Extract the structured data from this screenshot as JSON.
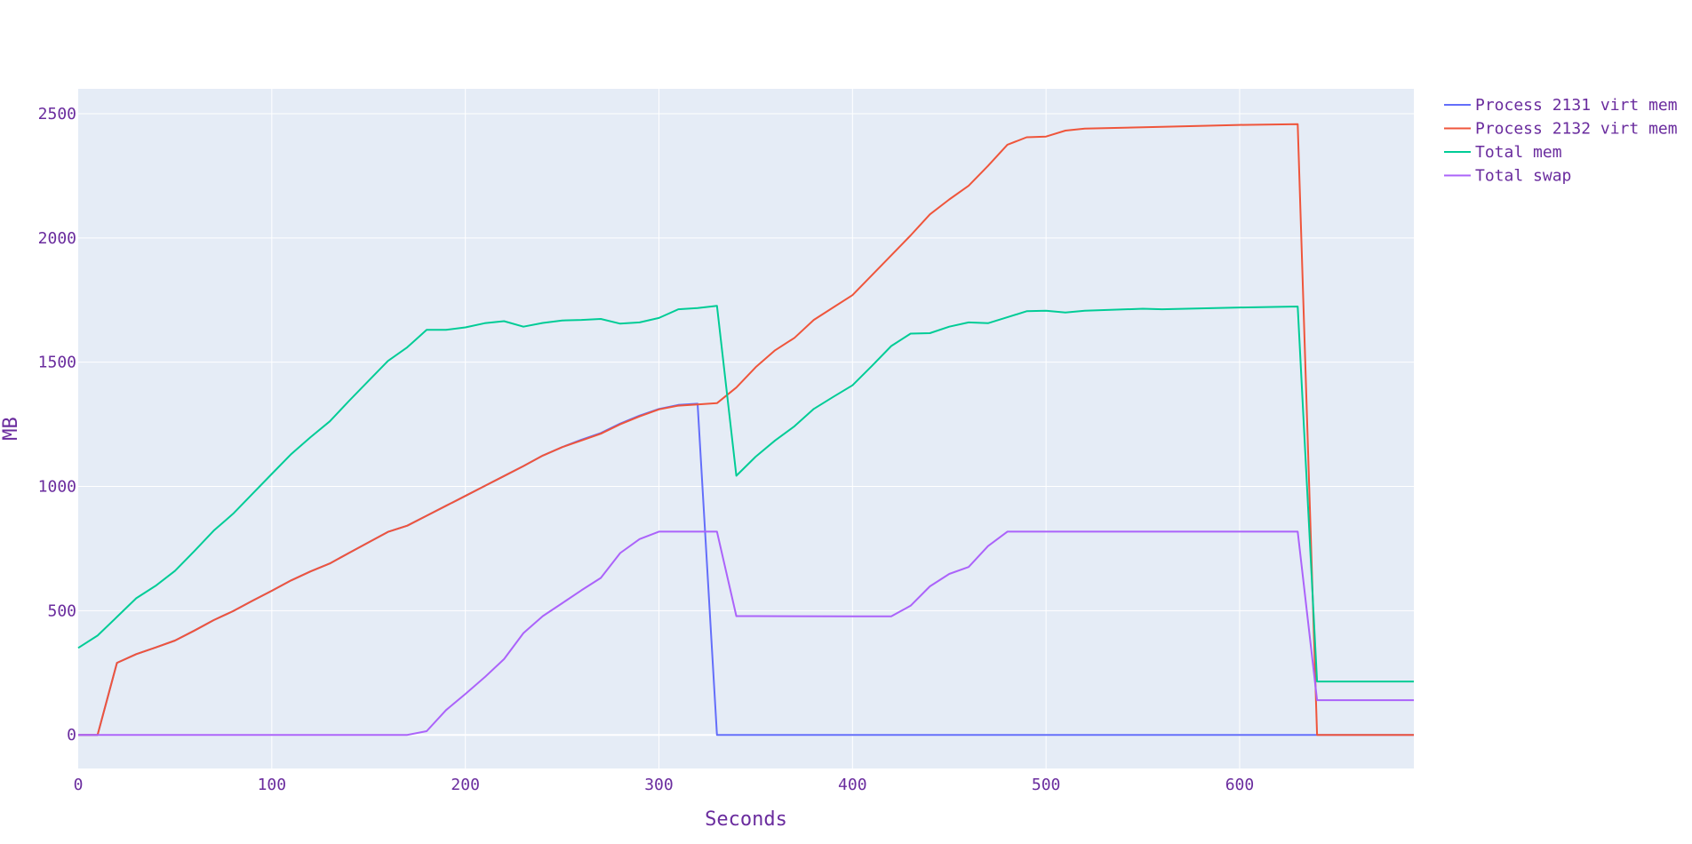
{
  "colors": {
    "plot_bg": "#E5ECF6",
    "grid": "#FFFFFF",
    "text": "#6A2C9E"
  },
  "chart_data": {
    "type": "line",
    "xlabel": "Seconds",
    "ylabel": "MB",
    "xlim": [
      0,
      690
    ],
    "ylim": [
      -135,
      2600
    ],
    "x_ticks": [
      0,
      100,
      200,
      300,
      400,
      500,
      600
    ],
    "y_ticks": [
      0,
      500,
      1000,
      1500,
      2000,
      2500
    ],
    "grid": true,
    "legend_position": "top-right",
    "series": [
      {
        "name": "Process 2131 virt mem",
        "color": "#636EFA",
        "points": [
          [
            0,
            0
          ],
          [
            10,
            0
          ],
          [
            20,
            290
          ],
          [
            30,
            325
          ],
          [
            40,
            352
          ],
          [
            50,
            380
          ],
          [
            60,
            420
          ],
          [
            70,
            462
          ],
          [
            80,
            498
          ],
          [
            90,
            540
          ],
          [
            100,
            580
          ],
          [
            110,
            622
          ],
          [
            120,
            658
          ],
          [
            130,
            690
          ],
          [
            140,
            733
          ],
          [
            150,
            775
          ],
          [
            160,
            817
          ],
          [
            170,
            842
          ],
          [
            180,
            882
          ],
          [
            190,
            922
          ],
          [
            200,
            962
          ],
          [
            210,
            1002
          ],
          [
            220,
            1042
          ],
          [
            230,
            1082
          ],
          [
            240,
            1124
          ],
          [
            250,
            1158
          ],
          [
            260,
            1188
          ],
          [
            270,
            1215
          ],
          [
            280,
            1253
          ],
          [
            290,
            1285
          ],
          [
            300,
            1312
          ],
          [
            310,
            1328
          ],
          [
            320,
            1333
          ],
          [
            330,
            0
          ],
          [
            340,
            0
          ],
          [
            400,
            0
          ],
          [
            500,
            0
          ],
          [
            600,
            0
          ],
          [
            640,
            0
          ],
          [
            690,
            0
          ]
        ]
      },
      {
        "name": "Process 2132 virt mem",
        "color": "#EF553B",
        "points": [
          [
            0,
            0
          ],
          [
            10,
            0
          ],
          [
            20,
            290
          ],
          [
            30,
            325
          ],
          [
            40,
            352
          ],
          [
            50,
            380
          ],
          [
            60,
            420
          ],
          [
            70,
            462
          ],
          [
            80,
            498
          ],
          [
            90,
            540
          ],
          [
            100,
            580
          ],
          [
            110,
            622
          ],
          [
            120,
            658
          ],
          [
            130,
            690
          ],
          [
            140,
            733
          ],
          [
            150,
            775
          ],
          [
            160,
            817
          ],
          [
            170,
            842
          ],
          [
            180,
            882
          ],
          [
            190,
            922
          ],
          [
            200,
            962
          ],
          [
            210,
            1002
          ],
          [
            220,
            1042
          ],
          [
            230,
            1082
          ],
          [
            240,
            1124
          ],
          [
            250,
            1158
          ],
          [
            260,
            1185
          ],
          [
            270,
            1212
          ],
          [
            280,
            1250
          ],
          [
            290,
            1282
          ],
          [
            300,
            1310
          ],
          [
            310,
            1325
          ],
          [
            320,
            1330
          ],
          [
            330,
            1335
          ],
          [
            340,
            1398
          ],
          [
            350,
            1480
          ],
          [
            360,
            1548
          ],
          [
            370,
            1598
          ],
          [
            380,
            1670
          ],
          [
            390,
            1720
          ],
          [
            400,
            1770
          ],
          [
            410,
            1850
          ],
          [
            420,
            1930
          ],
          [
            430,
            2010
          ],
          [
            440,
            2095
          ],
          [
            450,
            2155
          ],
          [
            460,
            2210
          ],
          [
            470,
            2290
          ],
          [
            480,
            2375
          ],
          [
            490,
            2405
          ],
          [
            500,
            2408
          ],
          [
            510,
            2432
          ],
          [
            520,
            2440
          ],
          [
            560,
            2447
          ],
          [
            600,
            2455
          ],
          [
            630,
            2458
          ],
          [
            640,
            0
          ],
          [
            690,
            0
          ]
        ]
      },
      {
        "name": "Total mem",
        "color": "#00CC96",
        "points": [
          [
            0,
            350
          ],
          [
            10,
            400
          ],
          [
            20,
            475
          ],
          [
            30,
            550
          ],
          [
            40,
            600
          ],
          [
            50,
            660
          ],
          [
            60,
            740
          ],
          [
            70,
            822
          ],
          [
            80,
            890
          ],
          [
            90,
            970
          ],
          [
            100,
            1050
          ],
          [
            110,
            1130
          ],
          [
            120,
            1198
          ],
          [
            130,
            1262
          ],
          [
            140,
            1345
          ],
          [
            150,
            1425
          ],
          [
            160,
            1505
          ],
          [
            170,
            1560
          ],
          [
            180,
            1630
          ],
          [
            190,
            1630
          ],
          [
            200,
            1640
          ],
          [
            210,
            1657
          ],
          [
            220,
            1665
          ],
          [
            230,
            1643
          ],
          [
            240,
            1658
          ],
          [
            250,
            1668
          ],
          [
            260,
            1670
          ],
          [
            270,
            1674
          ],
          [
            280,
            1655
          ],
          [
            290,
            1660
          ],
          [
            300,
            1678
          ],
          [
            310,
            1713
          ],
          [
            320,
            1718
          ],
          [
            330,
            1727
          ],
          [
            340,
            1043
          ],
          [
            350,
            1120
          ],
          [
            360,
            1185
          ],
          [
            370,
            1242
          ],
          [
            380,
            1312
          ],
          [
            390,
            1360
          ],
          [
            400,
            1407
          ],
          [
            410,
            1485
          ],
          [
            420,
            1565
          ],
          [
            430,
            1615
          ],
          [
            440,
            1617
          ],
          [
            450,
            1643
          ],
          [
            460,
            1660
          ],
          [
            470,
            1657
          ],
          [
            480,
            1681
          ],
          [
            490,
            1705
          ],
          [
            500,
            1707
          ],
          [
            510,
            1700
          ],
          [
            520,
            1707
          ],
          [
            550,
            1715
          ],
          [
            560,
            1713
          ],
          [
            600,
            1720
          ],
          [
            630,
            1724
          ],
          [
            640,
            215
          ],
          [
            690,
            215
          ]
        ]
      },
      {
        "name": "Total swap",
        "color": "#AB63FA",
        "points": [
          [
            0,
            0
          ],
          [
            170,
            0
          ],
          [
            180,
            15
          ],
          [
            190,
            100
          ],
          [
            200,
            165
          ],
          [
            210,
            232
          ],
          [
            220,
            305
          ],
          [
            230,
            410
          ],
          [
            240,
            478
          ],
          [
            250,
            530
          ],
          [
            260,
            582
          ],
          [
            270,
            632
          ],
          [
            280,
            732
          ],
          [
            290,
            788
          ],
          [
            300,
            818
          ],
          [
            310,
            818
          ],
          [
            320,
            818
          ],
          [
            330,
            818
          ],
          [
            340,
            478
          ],
          [
            350,
            478
          ],
          [
            400,
            477
          ],
          [
            420,
            477
          ],
          [
            430,
            520
          ],
          [
            440,
            598
          ],
          [
            450,
            648
          ],
          [
            460,
            676
          ],
          [
            470,
            760
          ],
          [
            480,
            818
          ],
          [
            500,
            818
          ],
          [
            600,
            818
          ],
          [
            630,
            818
          ],
          [
            640,
            140
          ],
          [
            690,
            140
          ]
        ]
      }
    ]
  }
}
